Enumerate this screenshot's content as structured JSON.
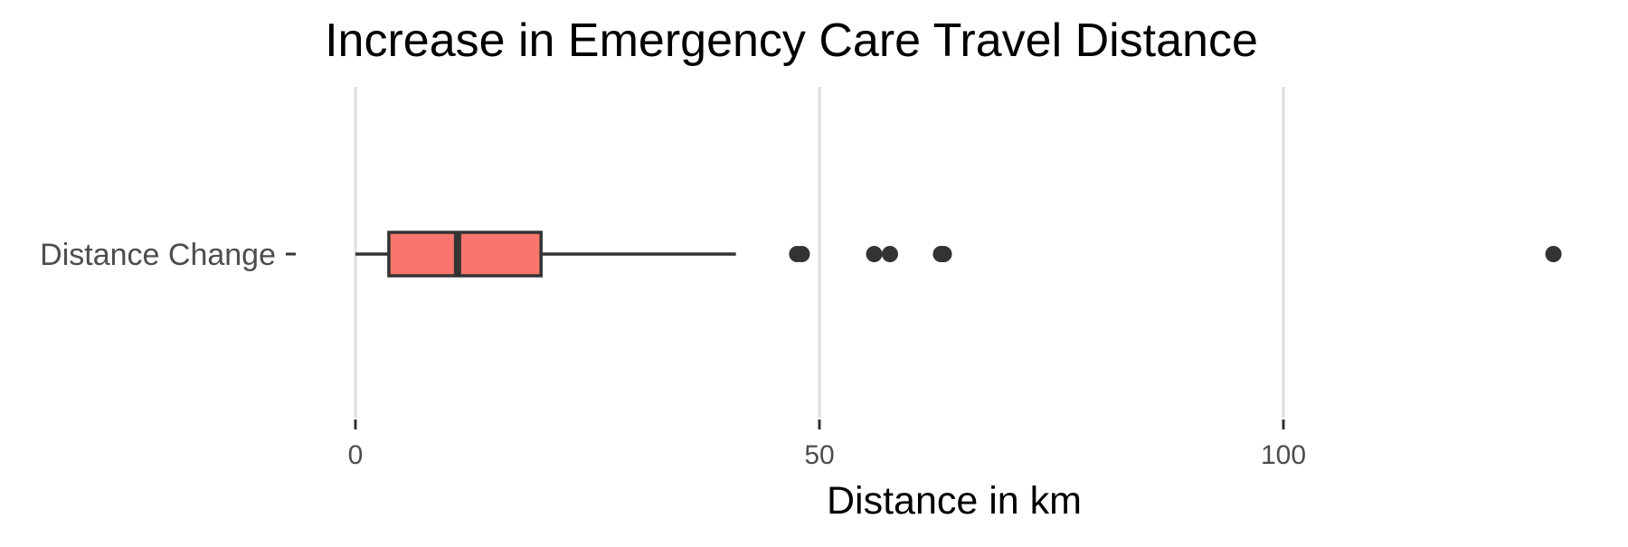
{
  "chart_data": {
    "type": "boxplot",
    "orientation": "horizontal",
    "title": "Increase in Emergency Care Travel Distance",
    "xlabel": "Distance in km",
    "ylabel": "",
    "xlim": [
      0,
      130
    ],
    "x_ticks": [
      0,
      50,
      100
    ],
    "grid": "vertical major gridlines",
    "legend": "none",
    "categories": [
      "Distance Change"
    ],
    "boxes": [
      {
        "category": "Distance Change",
        "whisker_low": 0,
        "q1": 3.6,
        "median": 11,
        "q3": 20,
        "whisker_high": 41,
        "outliers": [
          47.6,
          48.1,
          55.9,
          57.6,
          63.1,
          63.4,
          129.1
        ],
        "fill": "#F8766D",
        "stroke": "#333333"
      }
    ],
    "outlier_color": "#333333",
    "grid_color": "#dedede",
    "axis_color": "#333333"
  }
}
